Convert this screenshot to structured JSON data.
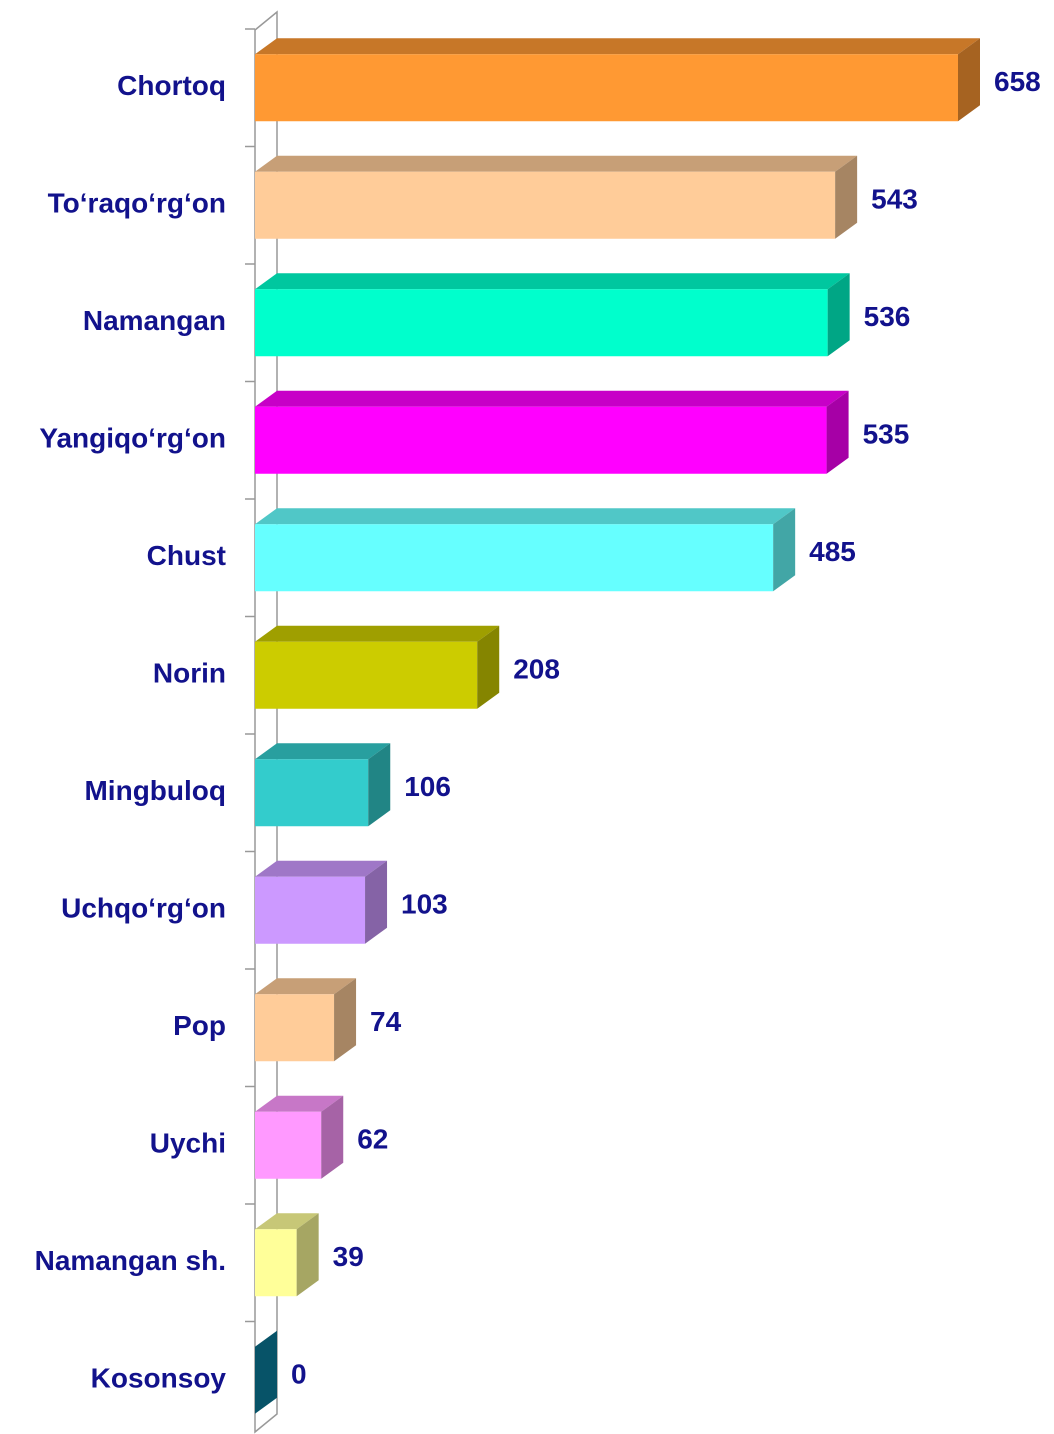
{
  "chart_data": {
    "type": "bar3d_horizontal",
    "categories": [
      "Chortoq",
      "To‘raqo‘rg‘on",
      "Namangan",
      "Yangiqo‘rg‘on",
      "Chust",
      "Norin",
      "Mingbuloq",
      "Uchqo‘rg‘on",
      "Pop",
      "Uychi",
      "Namangan sh.",
      "Kosonsoy"
    ],
    "values": [
      658,
      543,
      536,
      535,
      485,
      208,
      106,
      103,
      74,
      62,
      39,
      0
    ],
    "colors": [
      "#ff9933",
      "#ffcc99",
      "#00ffcc",
      "#ff00ff",
      "#66ffff",
      "#cccc00",
      "#33cccc",
      "#cc99ff",
      "#ffcc99",
      "#ff99ff",
      "#ffff99",
      "#0a7fa0"
    ],
    "label_color": "#12128c"
  }
}
